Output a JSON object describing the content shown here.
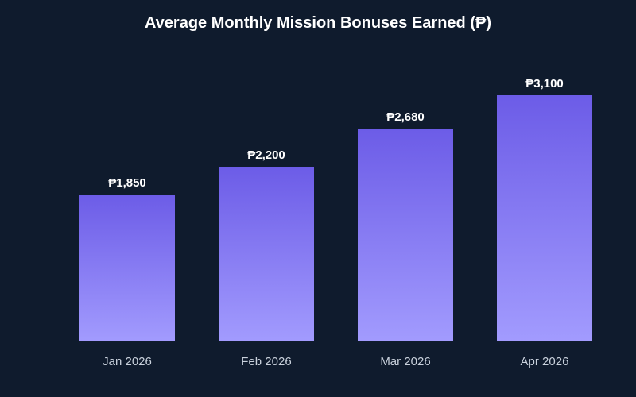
{
  "chart_data": {
    "type": "bar",
    "title": "Average Monthly Mission Bonuses Earned (₱)",
    "xlabel": "",
    "ylabel": "",
    "categories": [
      "Jan 2026",
      "Feb 2026",
      "Mar 2026",
      "Apr 2026"
    ],
    "values": [
      1850,
      2200,
      2680,
      3100
    ],
    "value_labels": [
      "₱1,850",
      "₱2,200",
      "₱2,680",
      "₱3,100"
    ],
    "ylim": [
      0,
      3100
    ],
    "grid": false,
    "legend": "none"
  },
  "colors": {
    "background": "#0f1b2d",
    "bar_top": "#6c5ce7",
    "bar_bottom": "#a29bfe",
    "title_text": "#ffffff",
    "value_text": "#ffffff",
    "tick_text": "#c9d1dc"
  }
}
